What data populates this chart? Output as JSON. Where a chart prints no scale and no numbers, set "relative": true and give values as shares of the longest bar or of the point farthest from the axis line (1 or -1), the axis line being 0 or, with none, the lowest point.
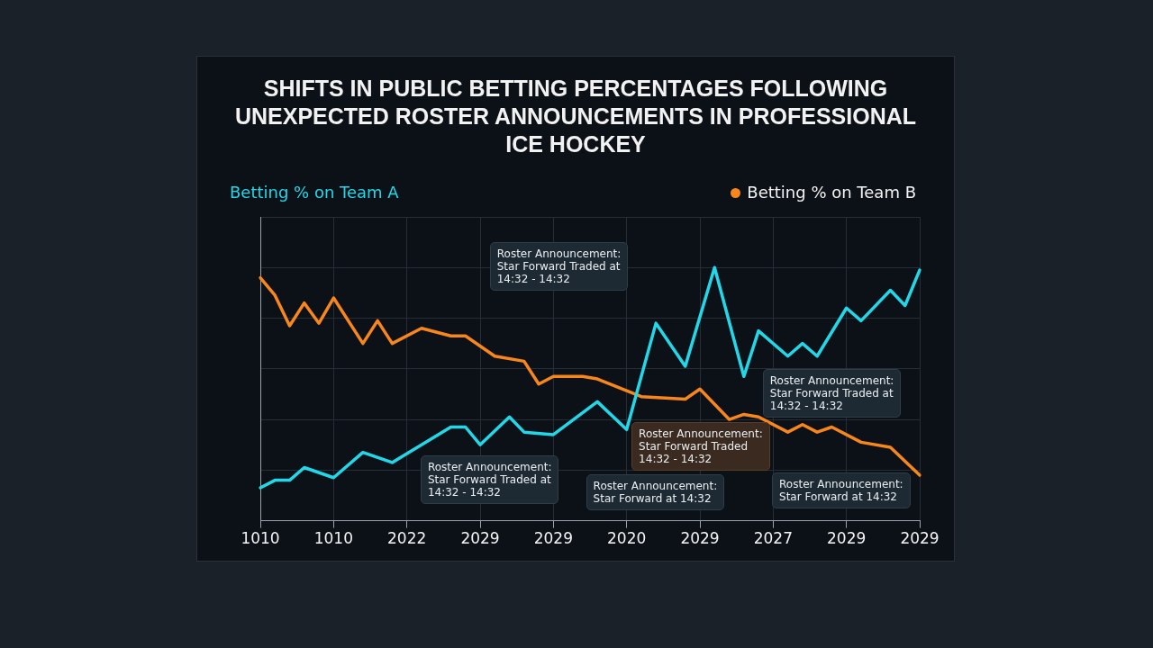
{
  "chart_data": {
    "type": "line",
    "title": "SHIFTS IN PUBLIC BETTING PERCENTAGES FOLLOWING UNEXPECTED ROSTER ANNOUNCEMENTS IN PROFESSIONAL ICE HOCKEY",
    "categories": [
      "1010",
      null,
      null,
      null,
      null,
      "1010",
      null,
      null,
      null,
      null,
      "2022",
      null,
      null,
      null,
      null,
      "2029",
      null,
      null,
      null,
      null,
      "2029",
      null,
      null,
      null,
      null,
      "2020",
      null,
      null,
      null,
      null,
      "2029",
      null,
      null,
      null,
      null,
      "2027",
      null,
      null,
      null,
      null,
      "2029",
      null,
      null,
      null,
      null,
      "2029"
    ],
    "relative": true,
    "grid": true,
    "legend": "top",
    "series": [
      {
        "name": "Betting % on Team A",
        "color": "#22d8e8",
        "values": [
          0.13,
          0.16,
          0.16,
          0.21,
          null,
          0.17,
          null,
          0.27,
          null,
          0.23,
          null,
          0.3,
          null,
          0.37,
          0.37,
          0.3,
          null,
          0.41,
          0.35,
          null,
          0.34,
          null,
          null,
          0.47,
          null,
          0.36,
          null,
          0.78,
          null,
          0.61,
          null,
          1,
          null,
          0.57,
          0.75,
          null,
          0.65,
          0.7,
          0.65,
          null,
          0.84,
          0.79,
          null,
          0.91,
          0.85,
          0.99
        ]
      },
      {
        "name": "Betting % on Team B",
        "color": "#f7861c",
        "values": [
          0.96,
          0.89,
          0.77,
          0.86,
          0.78,
          0.88,
          null,
          0.7,
          0.79,
          0.7,
          null,
          0.76,
          null,
          0.73,
          0.73,
          null,
          0.65,
          null,
          0.63,
          0.54,
          0.57,
          null,
          0.57,
          0.56,
          null,
          null,
          0.49,
          null,
          null,
          0.48,
          0.52,
          null,
          0.4,
          0.42,
          0.41,
          null,
          0.35,
          0.38,
          0.35,
          0.37,
          null,
          0.31,
          null,
          0.29,
          null,
          0.18
        ]
      }
    ],
    "annotations": [
      "Roster Announcement:\nStar Forward Traded at\n14:32 - 14:32",
      "Roster Announcement:\nStar Forward Traded at\n14:32 - 14:32",
      "Roster Announcement:\nStar Forward Traded\n14:32 - 14:32",
      "Roster Announcement:\nStar Forward at 14:32",
      "Roster Announcement:\nStar Forward Traded at\n14:32 - 14:32",
      "Roster Announcement:\nStar Forward at 14:32"
    ]
  }
}
